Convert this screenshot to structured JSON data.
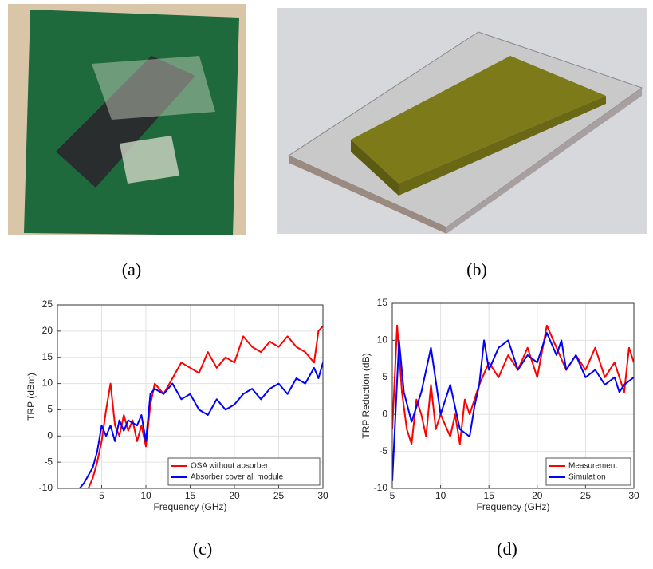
{
  "captions": [
    "(a)",
    "(b)",
    "(c)",
    "(d)"
  ],
  "chart_data": [
    {
      "type": "line",
      "xlabel": "Frequency (GHz)",
      "ylabel": "TRP (dBm)",
      "xlim": [
        0,
        30
      ],
      "xticks": [
        5,
        10,
        15,
        20,
        25,
        30
      ],
      "ylim": [
        -10,
        25
      ],
      "yticks": [
        -10,
        -5,
        0,
        5,
        10,
        15,
        20,
        25
      ],
      "grid": true,
      "legend": "lower right",
      "series": [
        {
          "name": "OSA without absorber",
          "color": "#ff0000",
          "x": [
            3.5,
            4,
            4.5,
            5,
            5.5,
            6,
            6.5,
            7,
            7.5,
            8,
            8.5,
            9,
            9.5,
            10,
            10.5,
            11,
            12,
            13,
            14,
            15,
            16,
            17,
            18,
            19,
            20,
            21,
            22,
            23,
            24,
            25,
            26,
            27,
            28,
            29,
            29.5,
            30
          ],
          "values": [
            -10,
            -8,
            -5,
            -1,
            5,
            10,
            2,
            0,
            4,
            1,
            3,
            -1,
            2,
            -2,
            6,
            10,
            8,
            11,
            14,
            13,
            12,
            16,
            13,
            15,
            14,
            19,
            17,
            16,
            18,
            17,
            19,
            17,
            16,
            14,
            20,
            21
          ]
        },
        {
          "name": "Absorber cover all module",
          "color": "#0000ff",
          "x": [
            2.5,
            3,
            4,
            4.5,
            5,
            5.5,
            6,
            6.5,
            7,
            7.5,
            8,
            9,
            9.5,
            10,
            10.5,
            11,
            12,
            13,
            14,
            15,
            16,
            17,
            18,
            19,
            20,
            21,
            22,
            23,
            24,
            25,
            26,
            27,
            28,
            29,
            29.5,
            30
          ],
          "values": [
            -10,
            -9,
            -6,
            -3,
            2,
            0,
            2,
            -1,
            3,
            1,
            3,
            2,
            4,
            -1,
            8,
            9,
            8,
            10,
            7,
            8,
            5,
            4,
            7,
            5,
            6,
            8,
            9,
            7,
            9,
            10,
            8,
            11,
            10,
            13,
            11,
            14
          ]
        }
      ]
    },
    {
      "type": "line",
      "xlabel": "Frequency (GHz)",
      "ylabel": "TRP Reduction (dB)",
      "xlim": [
        5,
        30
      ],
      "xticks": [
        5,
        10,
        15,
        20,
        25,
        30
      ],
      "ylim": [
        -10,
        15
      ],
      "yticks": [
        -10,
        -5,
        0,
        5,
        10,
        15
      ],
      "grid": true,
      "legend": "lower right",
      "series": [
        {
          "name": "Measurement",
          "color": "#ff0000",
          "x": [
            5,
            5.5,
            6,
            6.5,
            7,
            7.5,
            8,
            8.5,
            9,
            9.5,
            10,
            11,
            11.5,
            12,
            12.5,
            13,
            14,
            15,
            16,
            17,
            18,
            19,
            20,
            21,
            22,
            23,
            24,
            25,
            26,
            27,
            28,
            29,
            29.5,
            30
          ],
          "values": [
            -2,
            12,
            3,
            -2,
            -4,
            2,
            0,
            -3,
            4,
            -2,
            0,
            -3,
            0,
            -4,
            2,
            0,
            4,
            7,
            5,
            8,
            6,
            9,
            5,
            12,
            9,
            6,
            8,
            6,
            9,
            5,
            7,
            3,
            9,
            7
          ]
        },
        {
          "name": "Simulation",
          "color": "#0000ff",
          "x": [
            5,
            5.7,
            6.2,
            7,
            8,
            9,
            10,
            11,
            12,
            13,
            13.5,
            14,
            14.5,
            15,
            16,
            17,
            18,
            19,
            20,
            21,
            22,
            22.5,
            23,
            24,
            25,
            26,
            27,
            28,
            28.5,
            29,
            30
          ],
          "values": [
            -9,
            10,
            3,
            -1,
            3,
            9,
            0,
            4,
            -2,
            -3,
            1,
            4,
            10,
            6,
            9,
            10,
            6,
            8,
            7,
            11,
            8,
            10,
            6,
            8,
            5,
            6,
            4,
            5,
            3,
            4,
            5
          ]
        }
      ]
    }
  ]
}
